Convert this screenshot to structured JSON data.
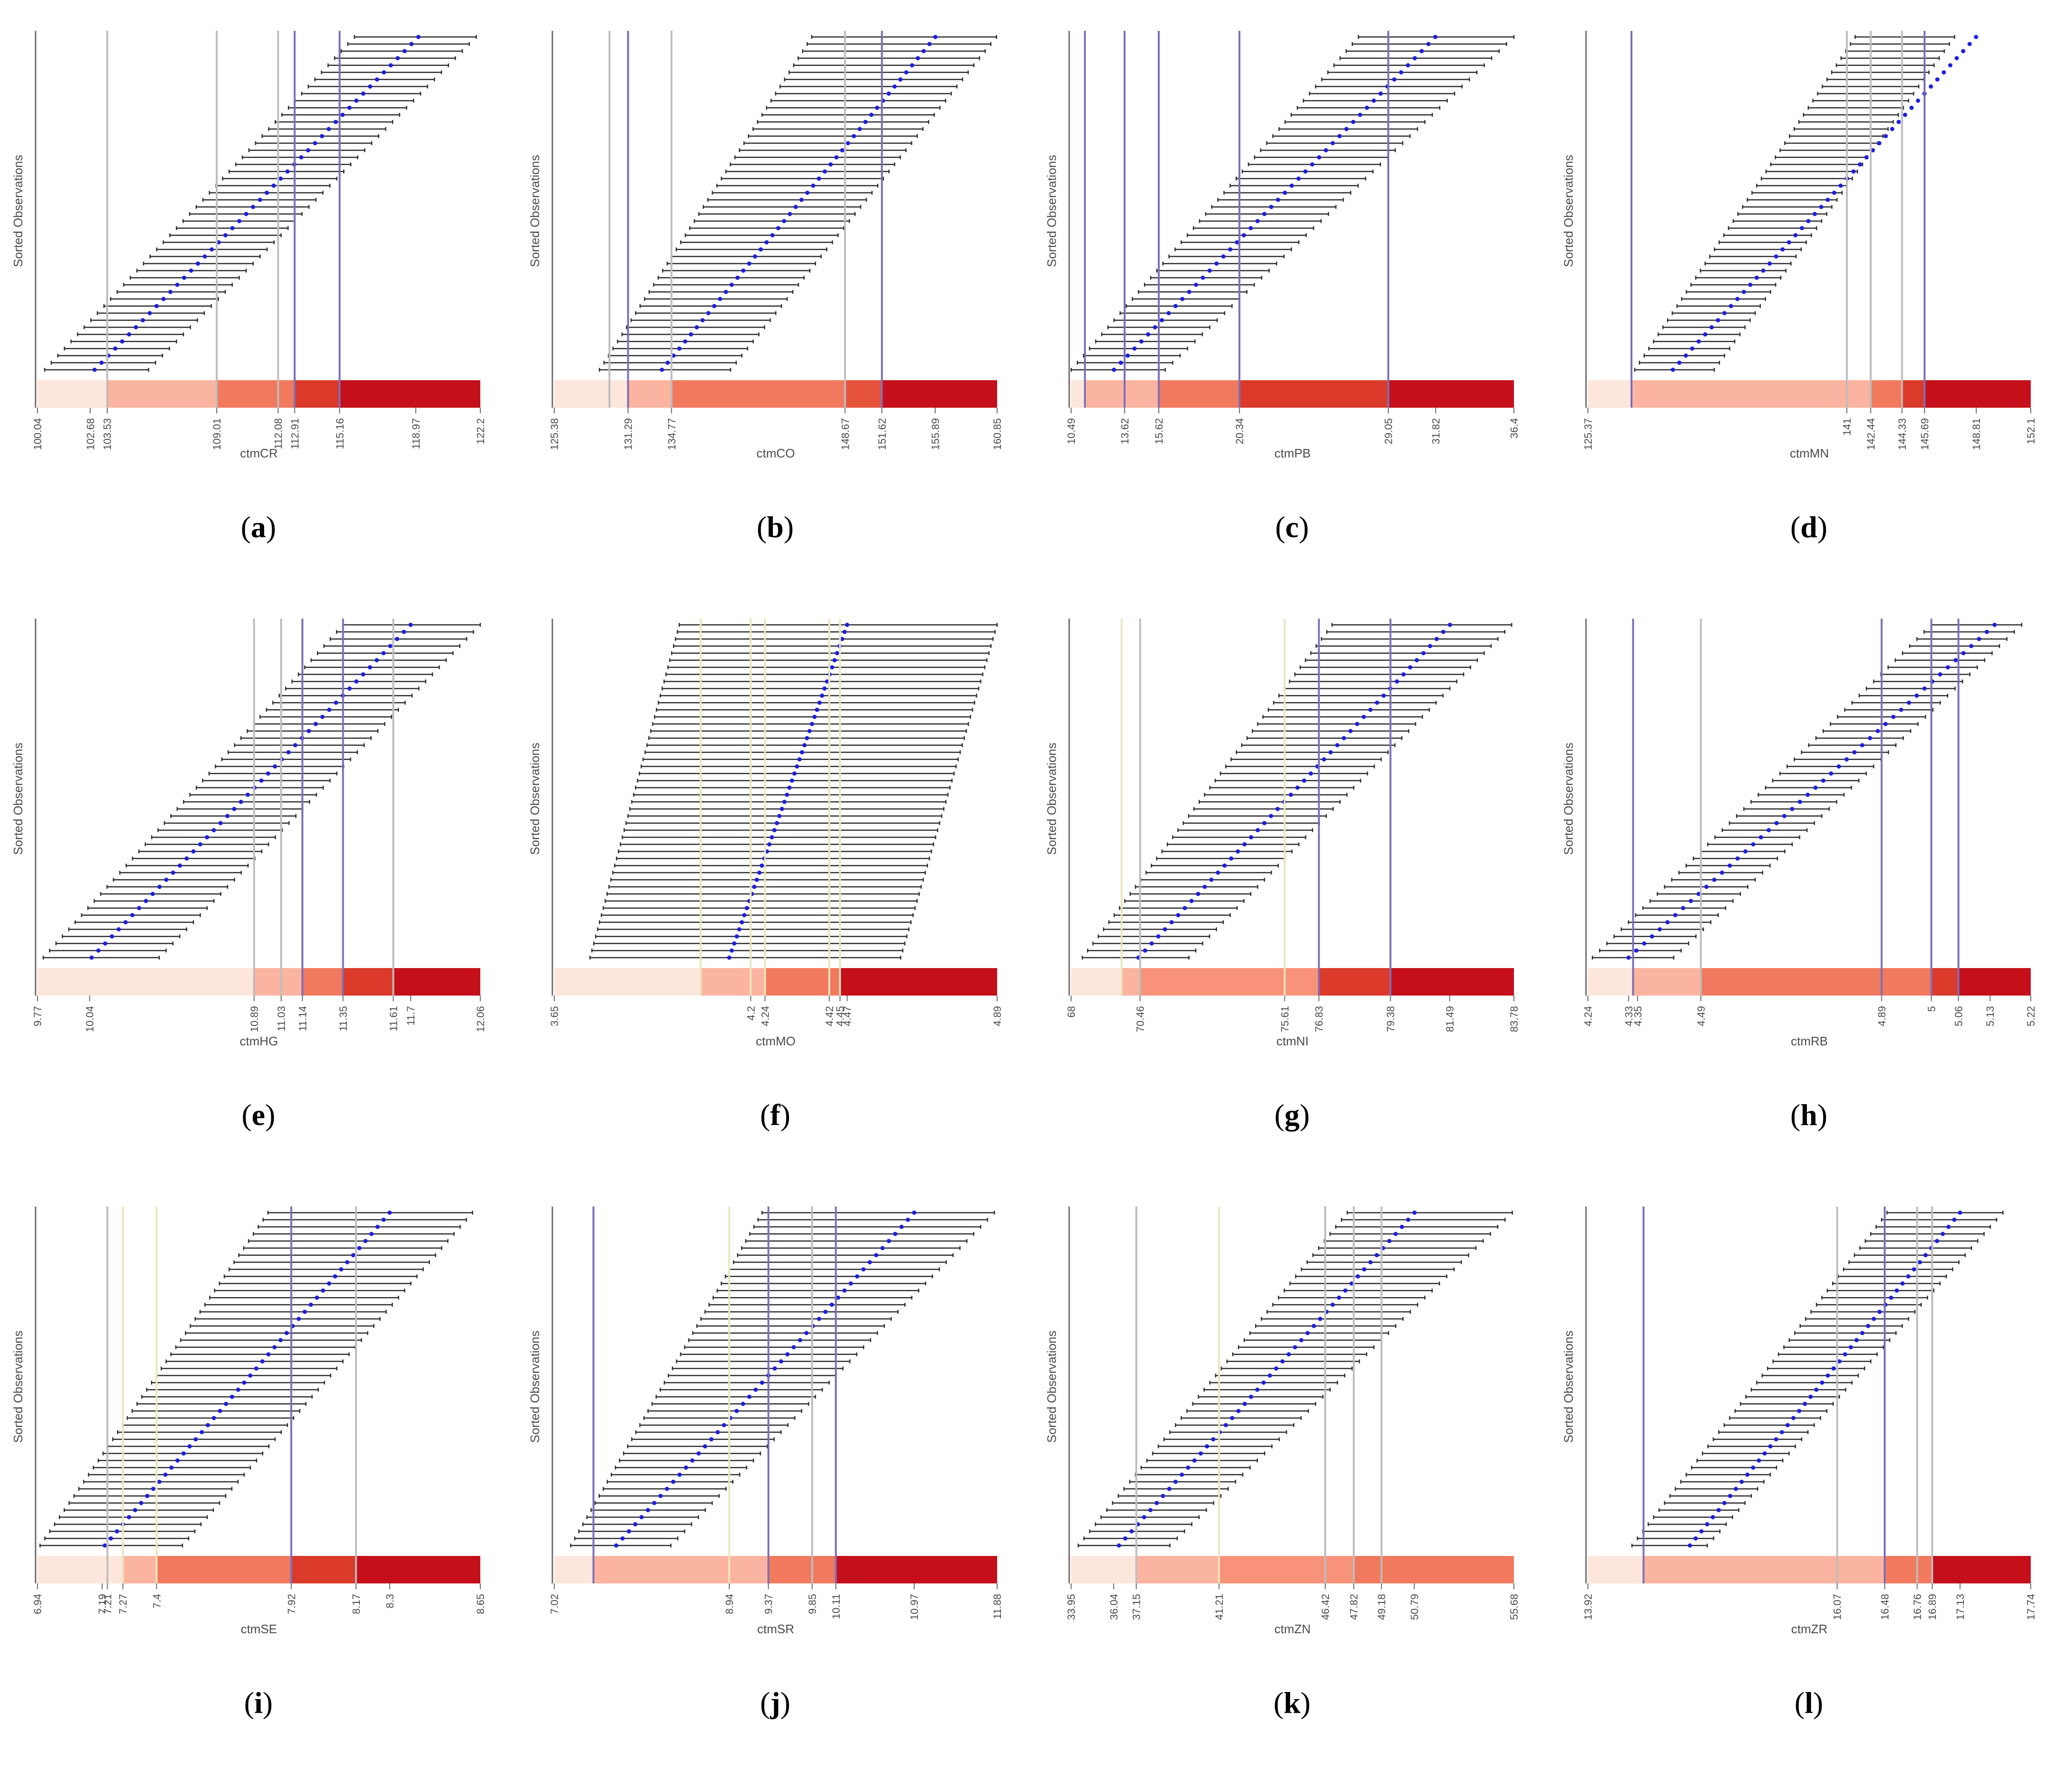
{
  "colors": {
    "interval": "#2b2b2b",
    "point": "#1f1fe0",
    "line_purple": "#7b6fb8",
    "line_gray": "#bdbdbd",
    "line_cream": "#ece6bd",
    "axis": "#6b6b6b",
    "text": "#4a4a4a"
  },
  "common": {
    "ylabel": "Sorted Observations"
  },
  "chart_data": [
    {
      "type": "interval-plot",
      "letter": "a",
      "xlabel": "ctmCR",
      "xlim": [
        100.04,
        122.2
      ],
      "ticks": [
        100.04,
        102.68,
        103.53,
        109.01,
        112.08,
        112.91,
        115.16,
        118.97,
        122.2
      ],
      "tick_labels": [
        "100.04",
        "102.68",
        "103.53",
        "109.01",
        "112.08",
        "112.91",
        "115.16",
        "118.97",
        "122.2"
      ],
      "vlines": [
        {
          "x": 103.53,
          "c": "gray"
        },
        {
          "x": 109.01,
          "c": "gray"
        },
        {
          "x": 112.08,
          "c": "gray"
        },
        {
          "x": 112.91,
          "c": "purple"
        },
        {
          "x": 115.16,
          "c": "purple"
        }
      ],
      "band": [
        [
          100.04,
          "#fde6dc"
        ],
        [
          103.53,
          "#fbb4a0"
        ],
        [
          109.01,
          "#f17a5e"
        ],
        [
          112.91,
          "#db3a2b"
        ],
        [
          115.16,
          "#c50f1a"
        ]
      ],
      "band_end": 122.2,
      "intervals": {
        "n": 48,
        "left_start": 100.4,
        "left_end": 115.9,
        "right_start": 105.6,
        "right_end": 122.0,
        "pt_start": 102.9,
        "pt_end": 119.1
      }
    },
    {
      "type": "interval-plot",
      "letter": "b",
      "xlabel": "ctmCO",
      "xlim": [
        125.38,
        160.85
      ],
      "ticks": [
        125.38,
        131.29,
        134.77,
        148.67,
        151.62,
        155.89,
        160.85
      ],
      "tick_labels": [
        "125.38",
        "131.29",
        "134.77",
        "148.67",
        "151.62",
        "155.89",
        "160.85"
      ],
      "vlines": [
        {
          "x": 129.8,
          "c": "gray"
        },
        {
          "x": 131.29,
          "c": "purple"
        },
        {
          "x": 134.77,
          "c": "gray"
        },
        {
          "x": 148.67,
          "c": "gray"
        },
        {
          "x": 151.62,
          "c": "purple"
        }
      ],
      "band": [
        [
          125.38,
          "#fde6dc"
        ],
        [
          131.29,
          "#fbb4a0"
        ],
        [
          134.77,
          "#f17a5e"
        ],
        [
          148.67,
          "#e5533d"
        ],
        [
          151.62,
          "#c50f1a"
        ]
      ],
      "band_end": 160.85,
      "intervals": {
        "n": 48,
        "left_start": 129.0,
        "left_end": 146.0,
        "right_start": 139.5,
        "right_end": 160.8,
        "pt_start": 134.0,
        "pt_end": 155.9
      }
    },
    {
      "type": "interval-plot",
      "letter": "c",
      "xlabel": "ctmPB",
      "xlim": [
        10.49,
        36.4
      ],
      "ticks": [
        10.49,
        13.62,
        15.62,
        20.34,
        29.05,
        31.82,
        36.4
      ],
      "tick_labels": [
        "10.49",
        "13.62",
        "15.62",
        "20.34",
        "29.05",
        "31.82",
        "36.4"
      ],
      "vlines": [
        {
          "x": 11.3,
          "c": "purple"
        },
        {
          "x": 13.62,
          "c": "purple"
        },
        {
          "x": 15.62,
          "c": "purple"
        },
        {
          "x": 20.34,
          "c": "purple"
        },
        {
          "x": 29.05,
          "c": "purple"
        }
      ],
      "band": [
        [
          10.49,
          "#fde6dc"
        ],
        [
          11.3,
          "#fbb4a0"
        ],
        [
          15.62,
          "#f17a5e"
        ],
        [
          20.34,
          "#db3a2b"
        ],
        [
          29.05,
          "#c50f1a"
        ]
      ],
      "band_end": 36.4,
      "intervals": {
        "n": 48,
        "left_start": 10.5,
        "left_end": 27.3,
        "right_start": 16.0,
        "right_end": 36.4,
        "pt_start": 13.0,
        "pt_end": 31.8
      }
    },
    {
      "type": "interval-plot",
      "letter": "d",
      "xlabel": "ctmMN",
      "xlim": [
        125.37,
        152.1
      ],
      "ticks": [
        125.37,
        141,
        142.44,
        144.33,
        145.69,
        148.81,
        152.1
      ],
      "tick_labels": [
        "125.37",
        "141",
        "142.44",
        "144.33",
        "145.69",
        "148.81",
        "152.1"
      ],
      "vlines": [
        {
          "x": 128.0,
          "c": "purple"
        },
        {
          "x": 141,
          "c": "gray"
        },
        {
          "x": 142.44,
          "c": "gray"
        },
        {
          "x": 144.33,
          "c": "gray"
        },
        {
          "x": 145.69,
          "c": "purple"
        }
      ],
      "band": [
        [
          125.37,
          "#fde6dc"
        ],
        [
          128.0,
          "#fbb4a0"
        ],
        [
          142.44,
          "#f17a5e"
        ],
        [
          144.33,
          "#db3a2b"
        ],
        [
          145.69,
          "#c50f1a"
        ]
      ],
      "band_end": 152.1,
      "intervals": {
        "n": 48,
        "left_start": 128.2,
        "left_end": 141.5,
        "right_start": 133.0,
        "right_end": 147.5,
        "pt_start": 130.5,
        "pt_end": 148.8
      }
    },
    {
      "type": "interval-plot",
      "letter": "e",
      "xlabel": "ctmHG",
      "xlim": [
        9.77,
        12.06
      ],
      "ticks": [
        9.77,
        10.04,
        10.89,
        11.03,
        11.14,
        11.35,
        11.61,
        11.7,
        12.06
      ],
      "tick_labels": [
        "9.77",
        "10.04",
        "10.89",
        "11.03",
        "11.14",
        "11.35",
        "11.61",
        "11.7",
        "12.06"
      ],
      "vlines": [
        {
          "x": 10.89,
          "c": "gray"
        },
        {
          "x": 11.03,
          "c": "gray"
        },
        {
          "x": 11.14,
          "c": "purple"
        },
        {
          "x": 11.35,
          "c": "purple"
        },
        {
          "x": 11.61,
          "c": "gray"
        }
      ],
      "band": [
        [
          9.77,
          "#fde6dc"
        ],
        [
          10.89,
          "#fbb4a0"
        ],
        [
          11.14,
          "#f17a5e"
        ],
        [
          11.35,
          "#db3a2b"
        ],
        [
          11.61,
          "#c50f1a"
        ]
      ],
      "band_end": 12.06,
      "intervals": {
        "n": 48,
        "left_start": 9.8,
        "left_end": 11.35,
        "right_start": 10.4,
        "right_end": 12.06,
        "pt_start": 10.05,
        "pt_end": 11.7
      }
    },
    {
      "type": "interval-plot",
      "letter": "f",
      "xlabel": "ctmMO",
      "xlim": [
        3.65,
        4.89
      ],
      "ticks": [
        3.65,
        4.2,
        4.24,
        4.42,
        4.45,
        4.47,
        4.89
      ],
      "tick_labels": [
        "3.65",
        "4.2",
        "4.24",
        "4.42",
        "4.45",
        "4.47",
        "4.89"
      ],
      "vlines": [
        {
          "x": 4.06,
          "c": "cream"
        },
        {
          "x": 4.2,
          "c": "cream"
        },
        {
          "x": 4.24,
          "c": "cream"
        },
        {
          "x": 4.42,
          "c": "cream"
        },
        {
          "x": 4.45,
          "c": "cream"
        }
      ],
      "band": [
        [
          3.65,
          "#fde6dc"
        ],
        [
          4.06,
          "#fbb4a0"
        ],
        [
          4.24,
          "#f17a5e"
        ],
        [
          4.45,
          "#c50f1a"
        ]
      ],
      "band_end": 4.89,
      "intervals": {
        "n": 48,
        "left_start": 3.75,
        "left_end": 4.0,
        "right_start": 4.62,
        "right_end": 4.89,
        "pt_start": 4.14,
        "pt_end": 4.47
      }
    },
    {
      "type": "interval-plot",
      "letter": "g",
      "xlabel": "ctmNI",
      "xlim": [
        68,
        83.78
      ],
      "ticks": [
        68,
        70.46,
        75.61,
        76.83,
        79.38,
        81.49,
        83.78
      ],
      "tick_labels": [
        "68",
        "70.46",
        "75.61",
        "76.83",
        "79.38",
        "81.49",
        "83.78"
      ],
      "vlines": [
        {
          "x": 69.8,
          "c": "cream"
        },
        {
          "x": 70.46,
          "c": "gray"
        },
        {
          "x": 75.61,
          "c": "cream"
        },
        {
          "x": 76.83,
          "c": "purple"
        },
        {
          "x": 79.38,
          "c": "purple"
        }
      ],
      "band": [
        [
          68,
          "#fde6dc"
        ],
        [
          69.8,
          "#fbb4a0"
        ],
        [
          70.46,
          "#f8937a"
        ],
        [
          76.83,
          "#db3a2b"
        ],
        [
          79.38,
          "#c50f1a"
        ]
      ],
      "band_end": 83.78,
      "intervals": {
        "n": 48,
        "left_start": 68.4,
        "left_end": 77.3,
        "right_start": 72.2,
        "right_end": 83.7,
        "pt_start": 70.4,
        "pt_end": 81.5
      }
    },
    {
      "type": "interval-plot",
      "letter": "h",
      "xlabel": "ctmRB",
      "xlim": [
        4.24,
        5.22
      ],
      "ticks": [
        4.24,
        4.33,
        4.35,
        4.49,
        4.89,
        5,
        5.06,
        5.13,
        5.22
      ],
      "tick_labels": [
        "4.24",
        "4.33",
        "4.35",
        "4.49",
        "4.89",
        "5",
        "5.06",
        "5.13",
        "5.22"
      ],
      "vlines": [
        {
          "x": 4.34,
          "c": "purple"
        },
        {
          "x": 4.49,
          "c": "gray"
        },
        {
          "x": 4.89,
          "c": "purple"
        },
        {
          "x": 5.0,
          "c": "purple"
        },
        {
          "x": 5.06,
          "c": "purple"
        }
      ],
      "band": [
        [
          4.24,
          "#fde6dc"
        ],
        [
          4.34,
          "#fbb4a0"
        ],
        [
          4.49,
          "#f17a5e"
        ],
        [
          5.0,
          "#db3a2b"
        ],
        [
          5.06,
          "#c50f1a"
        ]
      ],
      "band_end": 5.22,
      "intervals": {
        "n": 48,
        "left_start": 4.25,
        "left_end": 5.0,
        "right_start": 4.43,
        "right_end": 5.2,
        "pt_start": 4.33,
        "pt_end": 5.14
      }
    },
    {
      "type": "interval-plot",
      "letter": "i",
      "xlabel": "ctmSE",
      "xlim": [
        6.94,
        8.65
      ],
      "ticks": [
        6.94,
        7.19,
        7.21,
        7.27,
        7.4,
        7.92,
        8.17,
        8.3,
        8.65
      ],
      "tick_labels": [
        "6.94",
        "7.19",
        "7.21",
        "7.27",
        "7.4",
        "7.92",
        "8.17",
        "8.3",
        "8.65"
      ],
      "vlines": [
        {
          "x": 7.21,
          "c": "gray"
        },
        {
          "x": 7.27,
          "c": "cream"
        },
        {
          "x": 7.4,
          "c": "cream"
        },
        {
          "x": 7.92,
          "c": "purple"
        },
        {
          "x": 8.17,
          "c": "gray"
        }
      ],
      "band": [
        [
          6.94,
          "#fde6dc"
        ],
        [
          7.27,
          "#fbb4a0"
        ],
        [
          7.4,
          "#f17a5e"
        ],
        [
          7.92,
          "#db3a2b"
        ],
        [
          8.17,
          "#c50f1a"
        ]
      ],
      "band_end": 8.65,
      "intervals": {
        "n": 48,
        "left_start": 6.95,
        "left_end": 7.83,
        "right_start": 7.5,
        "right_end": 8.62,
        "pt_start": 7.2,
        "pt_end": 8.3
      }
    },
    {
      "type": "interval-plot",
      "letter": "j",
      "xlabel": "ctmSR",
      "xlim": [
        7.02,
        11.88
      ],
      "ticks": [
        7.02,
        8.94,
        9.37,
        9.85,
        10.11,
        10.97,
        11.88
      ],
      "tick_labels": [
        "7.02",
        "8.94",
        "9.37",
        "9.85",
        "10.11",
        "10.97",
        "11.88"
      ],
      "vlines": [
        {
          "x": 7.45,
          "c": "purple"
        },
        {
          "x": 8.94,
          "c": "cream"
        },
        {
          "x": 9.37,
          "c": "purple"
        },
        {
          "x": 9.85,
          "c": "gray"
        },
        {
          "x": 10.11,
          "c": "purple"
        }
      ],
      "band": [
        [
          7.02,
          "#fde6dc"
        ],
        [
          7.45,
          "#fbb4a0"
        ],
        [
          9.37,
          "#f17a5e"
        ],
        [
          10.11,
          "#c50f1a"
        ]
      ],
      "band_end": 11.88,
      "intervals": {
        "n": 48,
        "left_start": 7.2,
        "left_end": 9.3,
        "right_start": 8.3,
        "right_end": 11.85,
        "pt_start": 7.7,
        "pt_end": 10.97
      }
    },
    {
      "type": "interval-plot",
      "letter": "k",
      "xlabel": "ctmZN",
      "xlim": [
        33.95,
        55.68
      ],
      "ticks": [
        33.95,
        36.04,
        37.15,
        41.21,
        46.42,
        47.82,
        49.18,
        50.79,
        55.68
      ],
      "tick_labels": [
        "33.95",
        "36.04",
        "37.15",
        "41.21",
        "46.42",
        "47.82",
        "49.18",
        "50.79",
        "55.68"
      ],
      "vlines": [
        {
          "x": 37.15,
          "c": "gray"
        },
        {
          "x": 41.21,
          "c": "cream"
        },
        {
          "x": 46.42,
          "c": "gray"
        },
        {
          "x": 47.82,
          "c": "gray"
        },
        {
          "x": 49.18,
          "c": "gray"
        }
      ],
      "band": [
        [
          33.95,
          "#fde6dc"
        ],
        [
          37.15,
          "#fbb4a0"
        ],
        [
          41.21,
          "#f8937a"
        ],
        [
          47.82,
          "#f17a5e"
        ],
        [
          49.18,
          "#f17a5e"
        ]
      ],
      "band_end": 55.68,
      "intervals": {
        "n": 48,
        "left_start": 34.3,
        "left_end": 47.5,
        "right_start": 38.8,
        "right_end": 55.6,
        "pt_start": 36.3,
        "pt_end": 50.8
      }
    },
    {
      "type": "interval-plot",
      "letter": "l",
      "xlabel": "ctmZR",
      "xlim": [
        13.92,
        17.74
      ],
      "ticks": [
        13.92,
        16.07,
        16.48,
        16.76,
        16.89,
        17.13,
        17.74
      ],
      "tick_labels": [
        "13.92",
        "16.07",
        "16.48",
        "16.76",
        "16.89",
        "17.13",
        "17.74"
      ],
      "vlines": [
        {
          "x": 14.4,
          "c": "purple"
        },
        {
          "x": 16.07,
          "c": "gray"
        },
        {
          "x": 16.48,
          "c": "purple"
        },
        {
          "x": 16.76,
          "c": "gray"
        },
        {
          "x": 16.89,
          "c": "gray"
        }
      ],
      "band": [
        [
          13.92,
          "#fde6dc"
        ],
        [
          14.4,
          "#fbb4a0"
        ],
        [
          16.48,
          "#f17a5e"
        ],
        [
          16.89,
          "#c50f1a"
        ]
      ],
      "band_end": 17.74,
      "intervals": {
        "n": 48,
        "left_start": 14.3,
        "left_end": 16.5,
        "right_start": 14.95,
        "right_end": 17.5,
        "pt_start": 14.8,
        "pt_end": 17.13
      }
    }
  ]
}
